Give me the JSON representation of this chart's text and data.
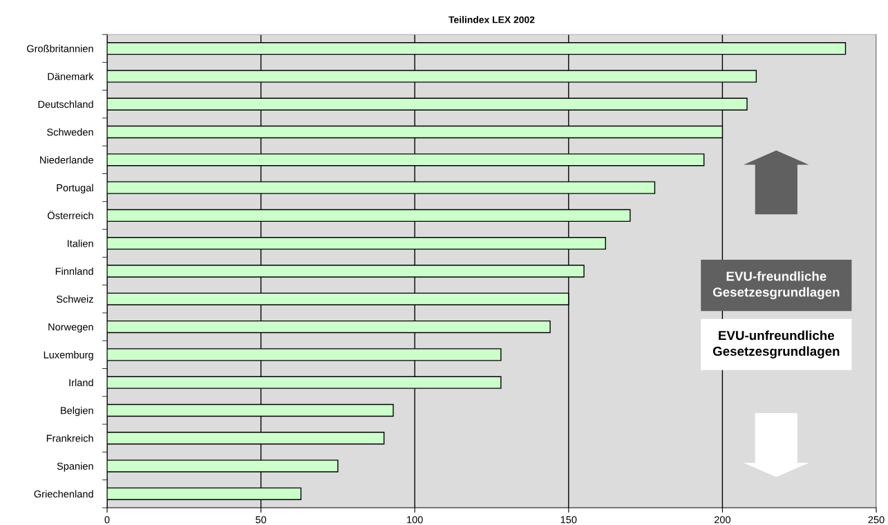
{
  "chart_data": {
    "type": "bar",
    "orientation": "horizontal",
    "title": "Teilindex LEX 2002",
    "categories": [
      "Großbritannien",
      "Dänemark",
      "Deutschland",
      "Schweden",
      "Niederlande",
      "Portugal",
      "Österreich",
      "Italien",
      "Finnland",
      "Schweiz",
      "Norwegen",
      "Luxemburg",
      "Irland",
      "Belgien",
      "Frankreich",
      "Spanien",
      "Griechenland"
    ],
    "values": [
      240,
      211,
      208,
      200,
      194,
      178,
      170,
      162,
      155,
      150,
      144,
      128,
      128,
      93,
      90,
      75,
      63
    ],
    "color": "#ccffcc",
    "xlim": [
      0,
      250
    ],
    "xticks": [
      0,
      50,
      100,
      150,
      200,
      250
    ],
    "grid": "x",
    "annotations": [
      "EVU-freundliche\nGesetzesgrundlagen",
      "EVU-unfreundliche\nGesetzesgrundlagen"
    ]
  }
}
